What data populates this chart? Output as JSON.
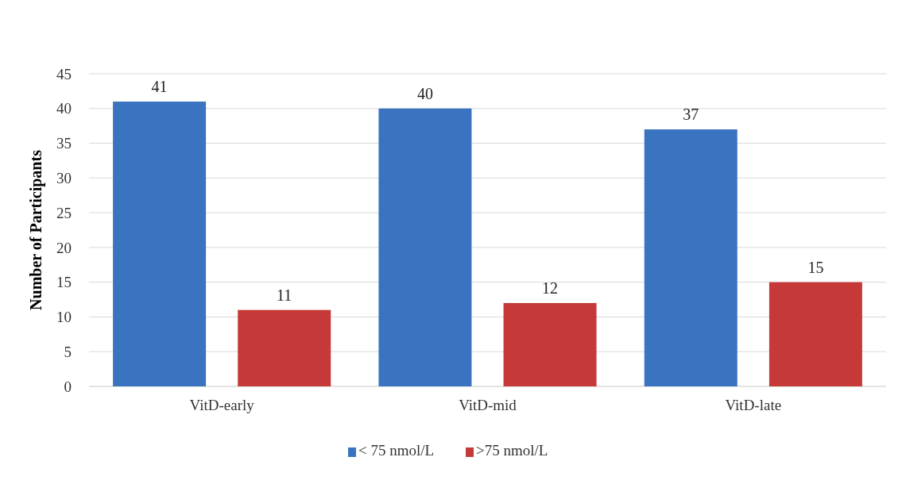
{
  "chart_data": {
    "type": "bar",
    "ylabel": "Number  of Participants",
    "categories": [
      "VitD-early",
      "VitD-mid",
      "VitD-late"
    ],
    "series": [
      {
        "name": "< 75 nmol/L",
        "color": "#3a74c0",
        "values": [
          41,
          40,
          37
        ]
      },
      {
        "name": ">75 nmol/L",
        "color": "#c53a38",
        "values": [
          11,
          12,
          15
        ]
      }
    ],
    "ylim": [
      0,
      45
    ],
    "yticks": [
      0,
      5,
      10,
      15,
      20,
      25,
      30,
      35,
      40,
      45
    ],
    "grid": "y",
    "legend": "bottom",
    "data_labels": true
  }
}
